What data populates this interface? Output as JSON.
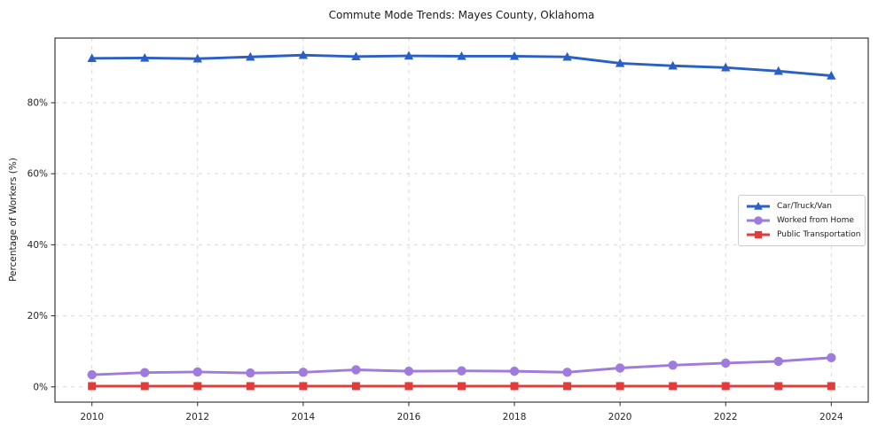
{
  "chart_data": {
    "type": "line",
    "title": "Commute Mode Trends: Mayes County, Oklahoma",
    "xlabel": "",
    "ylabel": "Percentage of Workers (%)",
    "x": [
      2010,
      2011,
      2012,
      2013,
      2014,
      2015,
      2016,
      2017,
      2018,
      2019,
      2020,
      2021,
      2022,
      2023,
      2024
    ],
    "series": [
      {
        "name": "Car/Truck/Van",
        "color": "#2a60c6",
        "marker": "triangle",
        "values": [
          92.5,
          92.6,
          92.4,
          92.9,
          93.4,
          93.0,
          93.2,
          93.1,
          93.1,
          92.9,
          91.1,
          90.4,
          89.9,
          88.9,
          87.6
        ]
      },
      {
        "name": "Worked from Home",
        "color": "#9f7bdd",
        "marker": "circle",
        "values": [
          3.4,
          4.0,
          4.2,
          3.9,
          4.1,
          4.8,
          4.4,
          4.5,
          4.4,
          4.1,
          5.3,
          6.1,
          6.7,
          7.2,
          8.2
        ]
      },
      {
        "name": "Public Transportation",
        "color": "#e23b3b",
        "marker": "square",
        "values": [
          0.2,
          0.2,
          0.2,
          0.2,
          0.2,
          0.2,
          0.2,
          0.2,
          0.2,
          0.2,
          0.2,
          0.2,
          0.2,
          0.2,
          0.2
        ]
      }
    ],
    "xticks": {
      "values": [
        2010,
        2012,
        2014,
        2016,
        2018,
        2020,
        2022,
        2024
      ],
      "labels": [
        "2010",
        "2012",
        "2014",
        "2016",
        "2018",
        "2020",
        "2022",
        "2024"
      ]
    },
    "yticks": {
      "values": [
        0,
        20,
        40,
        60,
        80
      ],
      "labels": [
        "0%",
        "20%",
        "40%",
        "60%",
        "80%"
      ]
    },
    "xlim": [
      2009.3,
      2024.7
    ],
    "ylim": [
      -4.3,
      98.2
    ],
    "grid": true,
    "grid_style": "dashed",
    "legend_position": "center-right"
  }
}
